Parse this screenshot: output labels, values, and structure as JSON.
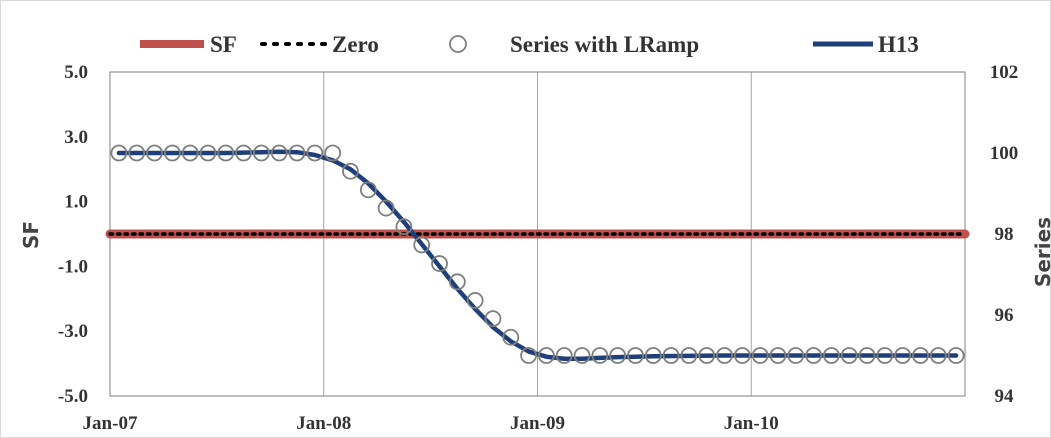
{
  "chart_data": {
    "type": "line",
    "y_left": {
      "label": "SF",
      "range": [
        -5,
        5
      ],
      "ticks": [
        "5.0",
        "3.0",
        "1.0",
        "-1.0",
        "-3.0",
        "-5.0"
      ],
      "tick_values": [
        5,
        3,
        1,
        -1,
        -3,
        -5
      ]
    },
    "y_right": {
      "label": "Series",
      "range": [
        94,
        102
      ],
      "ticks": [
        "102",
        "100",
        "98",
        "96",
        "94"
      ],
      "tick_values": [
        102,
        100,
        98,
        96,
        94
      ]
    },
    "x_axis": {
      "range": [
        "2007-01",
        "2010-12"
      ],
      "ticks": [
        "Jan-07",
        "Jan-08",
        "Jan-09",
        "Jan-10"
      ],
      "tick_values": [
        0,
        12,
        24,
        36
      ]
    },
    "grid": {
      "vertical": true,
      "horizontal": false
    },
    "legend": {
      "position": "top",
      "items": [
        {
          "name": "SF",
          "symbol": "thick-line",
          "color": "#c0504d"
        },
        {
          "name": "Zero",
          "symbol": "dotted-line",
          "color": "#000000"
        },
        {
          "name": "Series with LRamp",
          "symbol": "hollow-circle",
          "color": "#7f7f7f"
        },
        {
          "name": "H13",
          "symbol": "thick-line",
          "color": "#1f3f7a"
        }
      ]
    },
    "series": [
      {
        "name": "SF",
        "axis": "left",
        "color": "#c0504d",
        "months": [
          0,
          47
        ],
        "values": [
          0,
          0
        ]
      },
      {
        "name": "Zero",
        "axis": "left",
        "color": "#000000",
        "months": [
          0,
          47
        ],
        "values": [
          0,
          0
        ]
      },
      {
        "name": "Series with LRamp",
        "axis": "right",
        "color": "#7f7f7f",
        "months": [
          0,
          1,
          2,
          3,
          4,
          5,
          6,
          7,
          8,
          9,
          10,
          11,
          12,
          13,
          14,
          15,
          16,
          17,
          18,
          19,
          20,
          21,
          22,
          23,
          24,
          25,
          26,
          27,
          28,
          29,
          30,
          31,
          32,
          33,
          34,
          35,
          36,
          37,
          38,
          39,
          40,
          41,
          42,
          43,
          44,
          45,
          46,
          47
        ],
        "values": [
          100,
          100,
          100,
          100,
          100,
          100,
          100,
          100,
          100,
          100,
          100,
          100,
          100,
          99.55,
          99.09,
          98.64,
          98.18,
          97.73,
          97.27,
          96.82,
          96.36,
          95.91,
          95.45,
          95.0,
          95,
          95,
          95,
          95,
          95,
          95,
          95,
          95,
          95,
          95,
          95,
          95,
          95,
          95,
          95,
          95,
          95,
          95,
          95,
          95,
          95,
          95,
          95,
          95
        ]
      },
      {
        "name": "H13",
        "axis": "right",
        "color": "#1f3f7a",
        "months": [
          0,
          2,
          4,
          6,
          8,
          9,
          10,
          11,
          12,
          13,
          14,
          15,
          16,
          17,
          18,
          19,
          20,
          21,
          22,
          23,
          24,
          25,
          26,
          27,
          28,
          30,
          32,
          34,
          36,
          38,
          40,
          42,
          44,
          46,
          47
        ],
        "values": [
          100,
          100,
          100,
          100,
          100.02,
          100.03,
          100.02,
          99.95,
          99.82,
          99.6,
          99.25,
          98.8,
          98.3,
          97.75,
          97.2,
          96.65,
          96.15,
          95.7,
          95.35,
          95.1,
          94.97,
          94.92,
          94.92,
          94.94,
          94.96,
          94.98,
          94.99,
          95,
          95,
          95,
          95,
          95,
          95,
          95,
          95
        ]
      }
    ]
  }
}
